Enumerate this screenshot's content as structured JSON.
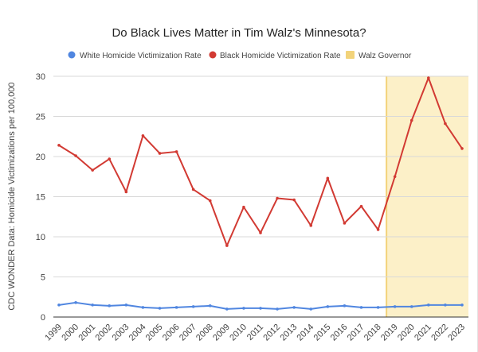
{
  "chart_data": {
    "type": "line",
    "title": "Do Black Lives Matter in Tim Walz's Minnesota?",
    "xlabel": "",
    "ylabel": "CDC WONDER Data: Homicide Victimizations per 100,000",
    "ylim": [
      0,
      30
    ],
    "yticks": [
      0,
      5,
      10,
      15,
      20,
      25,
      30
    ],
    "grid": true,
    "legend_position": "top",
    "categories": [
      "1999",
      "2000",
      "2001",
      "2002",
      "2003",
      "2004",
      "2005",
      "2006",
      "2007",
      "2008",
      "2009",
      "2010",
      "2011",
      "2012",
      "2013",
      "2014",
      "2015",
      "2016",
      "2017",
      "2018",
      "2019",
      "2020",
      "2021",
      "2022",
      "2023"
    ],
    "series": [
      {
        "name": "White Homicide Victimization Rate",
        "color": "#5086e0",
        "values": [
          1.5,
          1.8,
          1.5,
          1.4,
          1.5,
          1.2,
          1.1,
          1.2,
          1.3,
          1.4,
          1.0,
          1.1,
          1.1,
          1.0,
          1.2,
          1.0,
          1.3,
          1.4,
          1.2,
          1.2,
          1.3,
          1.3,
          1.5,
          1.5,
          1.5
        ]
      },
      {
        "name": "Black Homicide Victimization Rate",
        "color": "#d23a33",
        "values": [
          21.4,
          20.1,
          18.3,
          19.7,
          15.6,
          22.6,
          20.4,
          20.6,
          15.9,
          14.5,
          8.9,
          13.7,
          10.5,
          14.8,
          14.6,
          11.4,
          17.3,
          11.7,
          13.8,
          10.9,
          17.5,
          24.5,
          29.8,
          24.1,
          21.0
        ]
      }
    ],
    "shaded_region": {
      "name": "Walz Governor",
      "from": "2019",
      "to": "2023",
      "color": "#fcf0c8",
      "edge_color": "#f2d37a"
    }
  }
}
